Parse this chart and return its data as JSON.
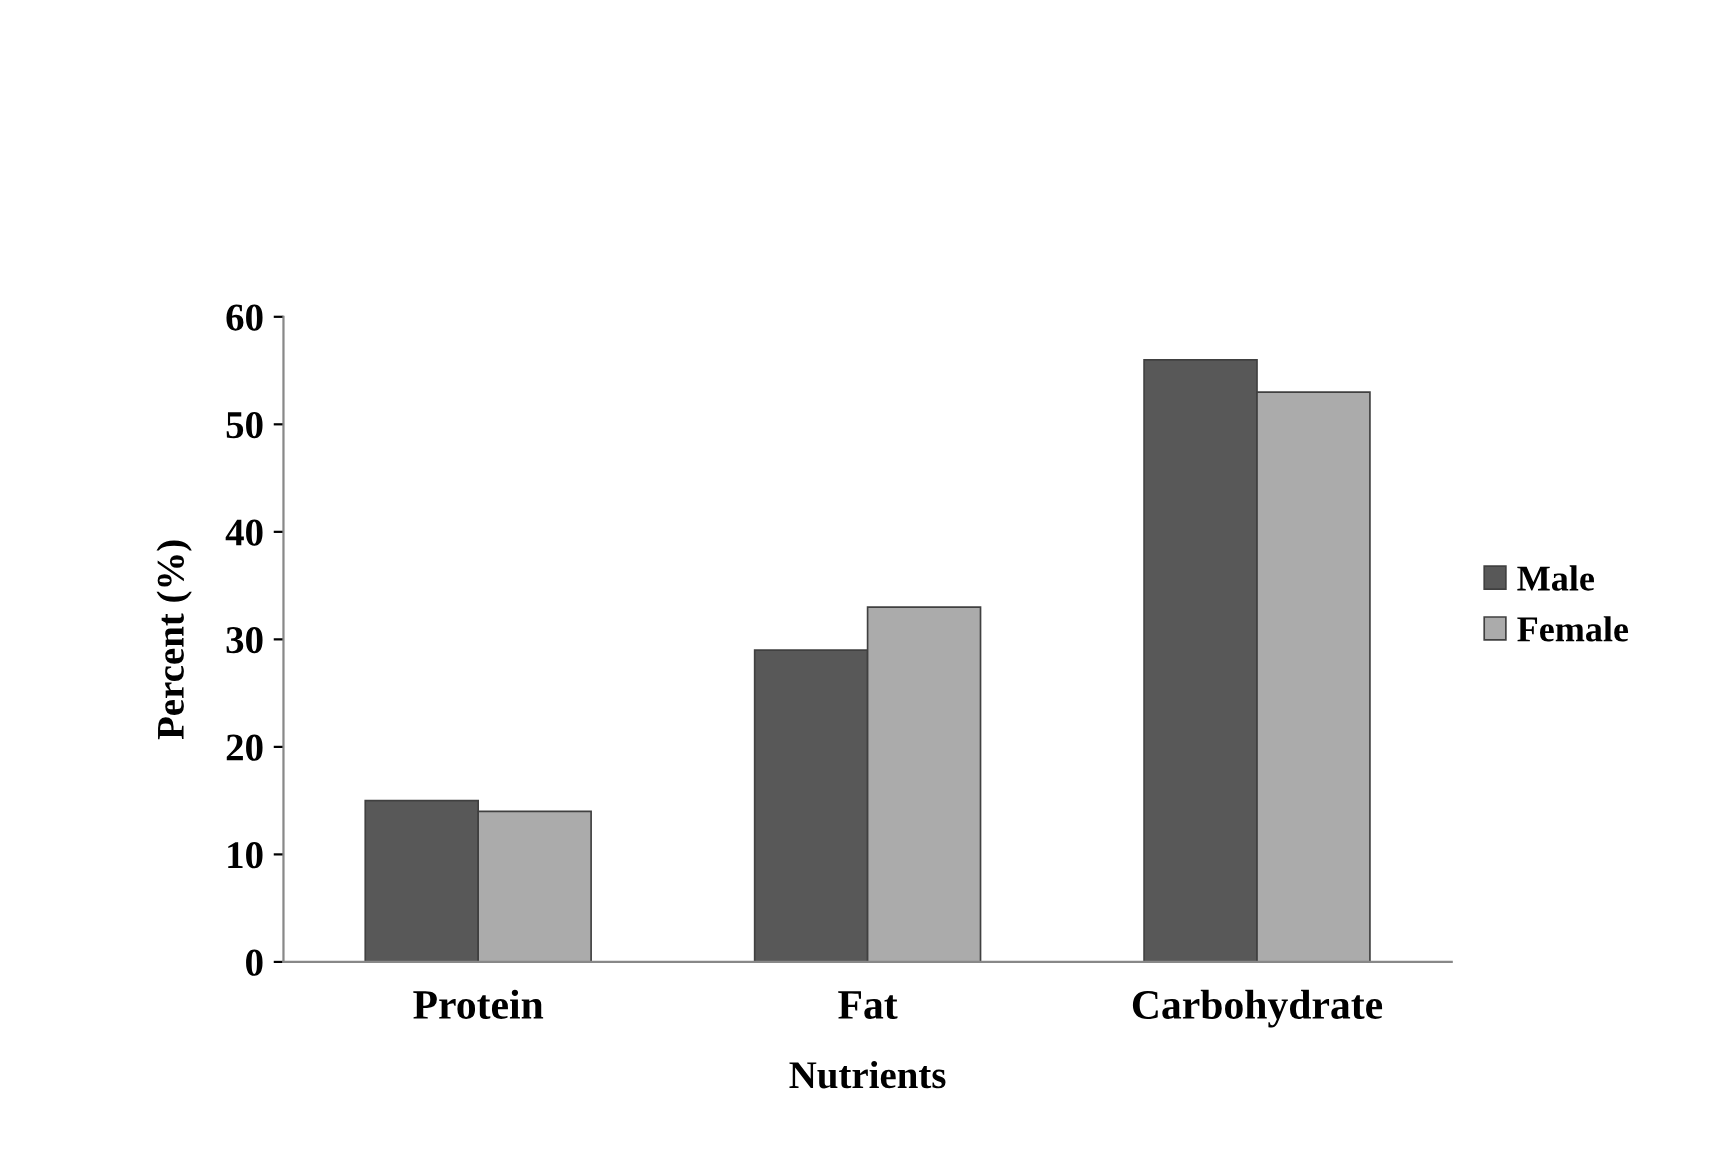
{
  "chart_data": {
    "type": "bar",
    "xlabel": "Nutrients",
    "ylabel": "Percent (%)",
    "categories": [
      "Protein",
      "Fat",
      "Carbohydrate"
    ],
    "series": [
      {
        "name": "Male",
        "color": "#585858",
        "values": [
          15,
          29,
          56
        ]
      },
      {
        "name": "Female",
        "color": "#ababab",
        "values": [
          14,
          33,
          53
        ]
      }
    ],
    "ylim": [
      0,
      60
    ],
    "yticks": [
      0,
      10,
      20,
      30,
      40,
      50,
      60
    ],
    "grid": false,
    "legend": "right"
  }
}
